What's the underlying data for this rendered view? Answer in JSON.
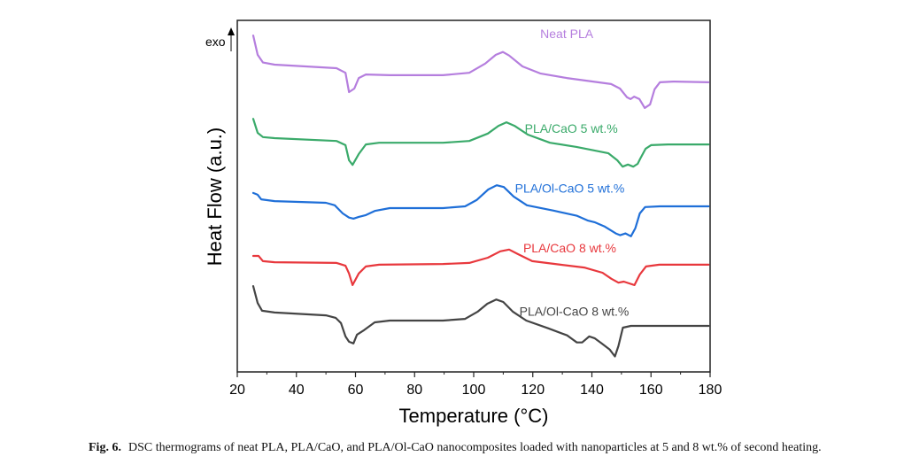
{
  "chart_data": {
    "type": "line",
    "title": "",
    "xlabel": "Temperature (°C)",
    "ylabel": "Heat Flow (a.u.)",
    "xlim": [
      20,
      180
    ],
    "ylim": [
      0,
      100
    ],
    "xticks": [
      20,
      40,
      60,
      80,
      100,
      120,
      140,
      160,
      180
    ],
    "xtick_labels": [
      "20",
      "40",
      "60",
      "80",
      "100",
      "120",
      "140",
      "160",
      "180"
    ],
    "yticks": [],
    "grid": false,
    "legend": "inline labels near right end of each curve",
    "annotation": {
      "text": "exo",
      "arrow": "up"
    },
    "series": [
      {
        "name": "Neat PLA",
        "color": "#b57ede",
        "label_at": [
          131.5,
          95
        ],
        "points": [
          [
            25.4,
            95.7
          ],
          [
            26.9,
            90.2
          ],
          [
            28.7,
            88.0
          ],
          [
            32.6,
            87.4
          ],
          [
            53.6,
            86.4
          ],
          [
            56.6,
            85.1
          ],
          [
            57.8,
            79.6
          ],
          [
            59.6,
            80.6
          ],
          [
            61.1,
            83.6
          ],
          [
            63.5,
            84.6
          ],
          [
            71.6,
            84.4
          ],
          [
            89.6,
            84.4
          ],
          [
            98.5,
            85.1
          ],
          [
            103.9,
            87.7
          ],
          [
            107.5,
            90.2
          ],
          [
            109.9,
            91.0
          ],
          [
            112.0,
            90.0
          ],
          [
            116.5,
            86.9
          ],
          [
            122.5,
            84.9
          ],
          [
            131.5,
            83.6
          ],
          [
            146.5,
            81.9
          ],
          [
            149.5,
            80.6
          ],
          [
            151.9,
            78.1
          ],
          [
            153.1,
            77.6
          ],
          [
            154.3,
            78.3
          ],
          [
            156.1,
            77.6
          ],
          [
            157.9,
            75.1
          ],
          [
            159.7,
            76.1
          ],
          [
            161.2,
            80.4
          ],
          [
            163.0,
            82.4
          ],
          [
            167.5,
            82.6
          ],
          [
            179.5,
            82.4
          ]
        ]
      },
      {
        "name": "PLA/CaO 5 wt.%",
        "color": "#3aaa6a",
        "label_at": [
          133.0,
          68
        ],
        "points": [
          [
            25.4,
            72.0
          ],
          [
            26.9,
            68.0
          ],
          [
            28.7,
            66.8
          ],
          [
            32.6,
            66.5
          ],
          [
            53.6,
            65.7
          ],
          [
            56.6,
            64.5
          ],
          [
            57.8,
            60.2
          ],
          [
            59.0,
            58.9
          ],
          [
            61.1,
            62.0
          ],
          [
            63.5,
            64.7
          ],
          [
            68.0,
            65.2
          ],
          [
            89.6,
            65.2
          ],
          [
            98.5,
            65.7
          ],
          [
            104.8,
            67.8
          ],
          [
            108.4,
            70.0
          ],
          [
            111.1,
            71.0
          ],
          [
            113.8,
            70.0
          ],
          [
            118.3,
            67.5
          ],
          [
            125.8,
            65.2
          ],
          [
            134.8,
            64.0
          ],
          [
            145.6,
            62.2
          ],
          [
            148.6,
            60.2
          ],
          [
            150.4,
            58.4
          ],
          [
            152.2,
            59.0
          ],
          [
            154.0,
            58.4
          ],
          [
            155.5,
            59.2
          ],
          [
            156.4,
            60.7
          ],
          [
            158.2,
            63.5
          ],
          [
            160.0,
            64.5
          ],
          [
            165.7,
            64.7
          ],
          [
            179.5,
            64.7
          ]
        ]
      },
      {
        "name": "PLA/Ol-CaO 5 wt.%",
        "color": "#1f6fd8",
        "label_at": [
          132.5,
          51
        ],
        "points": [
          [
            25.4,
            50.9
          ],
          [
            26.9,
            50.4
          ],
          [
            28.1,
            49.1
          ],
          [
            32.6,
            48.6
          ],
          [
            50.0,
            48.1
          ],
          [
            53.0,
            47.4
          ],
          [
            55.7,
            45.1
          ],
          [
            57.8,
            43.9
          ],
          [
            59.3,
            43.6
          ],
          [
            61.1,
            44.1
          ],
          [
            63.5,
            44.6
          ],
          [
            66.5,
            45.8
          ],
          [
            71.6,
            46.6
          ],
          [
            89.6,
            46.6
          ],
          [
            97.1,
            47.1
          ],
          [
            101.0,
            48.9
          ],
          [
            104.9,
            51.9
          ],
          [
            107.8,
            53.1
          ],
          [
            110.2,
            52.6
          ],
          [
            113.5,
            49.9
          ],
          [
            118.0,
            47.4
          ],
          [
            127.0,
            45.9
          ],
          [
            135.0,
            44.4
          ],
          [
            138.5,
            43.1
          ],
          [
            140.9,
            42.6
          ],
          [
            144.2,
            41.4
          ],
          [
            148.1,
            39.4
          ],
          [
            149.6,
            38.9
          ],
          [
            151.4,
            39.4
          ],
          [
            153.2,
            38.6
          ],
          [
            154.7,
            40.9
          ],
          [
            156.2,
            45.1
          ],
          [
            158.0,
            46.9
          ],
          [
            163.0,
            47.1
          ],
          [
            179.5,
            47.1
          ]
        ]
      },
      {
        "name": "PLA/CaO 8 wt.%",
        "color": "#e8383d",
        "label_at": [
          132.5,
          34
        ],
        "points": [
          [
            25.4,
            33.0
          ],
          [
            27.2,
            33.0
          ],
          [
            28.7,
            31.5
          ],
          [
            32.6,
            31.2
          ],
          [
            53.6,
            31.0
          ],
          [
            56.6,
            30.2
          ],
          [
            57.8,
            28.0
          ],
          [
            59.0,
            24.7
          ],
          [
            61.1,
            28.0
          ],
          [
            63.5,
            30.0
          ],
          [
            68.0,
            30.5
          ],
          [
            89.6,
            30.7
          ],
          [
            98.5,
            31.0
          ],
          [
            104.8,
            32.5
          ],
          [
            109.0,
            34.3
          ],
          [
            112.0,
            34.8
          ],
          [
            115.0,
            33.5
          ],
          [
            119.8,
            31.5
          ],
          [
            129.4,
            30.5
          ],
          [
            137.4,
            29.7
          ],
          [
            143.6,
            28.2
          ],
          [
            146.6,
            26.5
          ],
          [
            149.0,
            25.4
          ],
          [
            150.8,
            25.7
          ],
          [
            152.6,
            25.2
          ],
          [
            154.4,
            24.7
          ],
          [
            156.2,
            27.7
          ],
          [
            158.3,
            30.0
          ],
          [
            162.8,
            30.5
          ],
          [
            179.5,
            30.5
          ]
        ]
      },
      {
        "name": "PLA/Ol-CaO 8 wt.%",
        "color": "#444444",
        "label_at": [
          134.0,
          16
        ],
        "points": [
          [
            25.4,
            24.4
          ],
          [
            26.9,
            19.6
          ],
          [
            28.4,
            17.4
          ],
          [
            32.6,
            16.9
          ],
          [
            50.0,
            16.1
          ],
          [
            53.3,
            15.4
          ],
          [
            55.1,
            13.9
          ],
          [
            56.6,
            10.1
          ],
          [
            57.8,
            8.6
          ],
          [
            59.3,
            8.1
          ],
          [
            60.5,
            10.6
          ],
          [
            62.9,
            11.9
          ],
          [
            66.5,
            14.1
          ],
          [
            71.6,
            14.6
          ],
          [
            89.6,
            14.6
          ],
          [
            97.1,
            15.1
          ],
          [
            101.3,
            17.1
          ],
          [
            104.6,
            19.4
          ],
          [
            107.6,
            20.6
          ],
          [
            110.0,
            19.9
          ],
          [
            113.3,
            17.1
          ],
          [
            117.8,
            14.6
          ],
          [
            125.3,
            12.4
          ],
          [
            131.6,
            10.4
          ],
          [
            134.9,
            8.4
          ],
          [
            136.7,
            8.4
          ],
          [
            139.1,
            10.1
          ],
          [
            140.9,
            9.6
          ],
          [
            143.3,
            8.1
          ],
          [
            146.0,
            6.4
          ],
          [
            147.8,
            4.4
          ],
          [
            149.0,
            7.4
          ],
          [
            150.5,
            12.6
          ],
          [
            153.2,
            13.1
          ],
          [
            160.0,
            13.1
          ],
          [
            179.5,
            13.1
          ]
        ]
      }
    ]
  },
  "caption": {
    "label": "Fig. 6.",
    "text": "DSC thermograms of neat PLA, PLA/CaO, and PLA/Ol-CaO nanocomposites loaded with nanoparticles at 5 and 8 wt.% of second heating."
  }
}
